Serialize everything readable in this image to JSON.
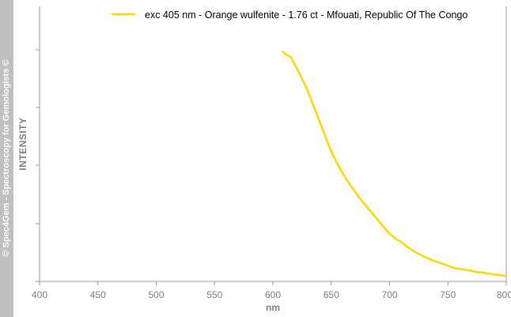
{
  "watermark": "© Spec4Gem - Spectroscopy for Gemologists ©",
  "chart_data": {
    "type": "line",
    "xlabel": "nm",
    "ylabel": "INTENSITY",
    "xlim": [
      400,
      800
    ],
    "ylim": [
      0,
      100
    ],
    "xticks": [
      "400",
      "450",
      "500",
      "550",
      "600",
      "650",
      "700",
      "750",
      "800"
    ],
    "yticks_labeled": false,
    "grid": false,
    "legend_position": "top",
    "series": [
      {
        "name": "exc 405 nm - Orange wulfenite - 1.76 ct - Mfouati, Republic Of The Congo",
        "color": "#ffd700",
        "x": [
          608,
          611,
          615,
          620,
          625,
          630,
          635,
          640,
          645,
          650,
          655,
          660,
          665,
          670,
          675,
          680,
          685,
          690,
          695,
          700,
          705,
          710,
          715,
          720,
          725,
          730,
          735,
          740,
          745,
          750,
          755,
          760,
          765,
          770,
          775,
          780,
          785,
          790,
          795,
          800
        ],
        "y": [
          99.5,
          98.0,
          97.0,
          92.5,
          87.5,
          82.0,
          75.5,
          69.0,
          62.5,
          56.0,
          51.0,
          46.5,
          42.5,
          39.0,
          35.5,
          32.5,
          29.5,
          26.5,
          23.5,
          20.5,
          18.5,
          17.0,
          15.0,
          13.3,
          11.8,
          10.6,
          9.4,
          8.5,
          7.7,
          6.8,
          5.8,
          5.4,
          5.1,
          4.6,
          4.0,
          3.8,
          3.4,
          3.0,
          2.7,
          2.3
        ]
      }
    ]
  }
}
